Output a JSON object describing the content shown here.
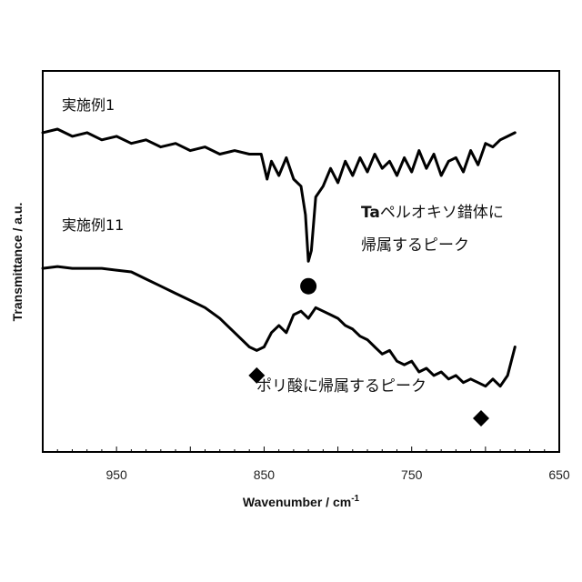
{
  "chart_data": {
    "type": "line",
    "xlabel": "Wavenumber / cm",
    "xlabel_sup": "-1",
    "ylabel": "Transmittance / a.u.",
    "xlim": [
      1000,
      650
    ],
    "x_reversed": true,
    "xticks": [
      950,
      850,
      750,
      650
    ],
    "y_scale": "arbitrary offset",
    "series": [
      {
        "name": "実施例1",
        "x": [
          1000,
          990,
          980,
          970,
          960,
          950,
          940,
          930,
          920,
          910,
          900,
          890,
          880,
          870,
          860,
          852,
          848,
          845,
          840,
          835,
          830,
          825,
          822,
          820,
          818,
          815,
          810,
          805,
          800,
          795,
          790,
          785,
          780,
          775,
          770,
          765,
          760,
          755,
          750,
          745,
          740,
          735,
          730,
          725,
          720,
          715,
          710,
          705,
          700,
          695,
          690,
          685,
          680
        ],
        "y": [
          0.98,
          0.99,
          0.97,
          0.98,
          0.96,
          0.97,
          0.95,
          0.96,
          0.94,
          0.95,
          0.93,
          0.94,
          0.92,
          0.93,
          0.92,
          0.92,
          0.85,
          0.9,
          0.86,
          0.91,
          0.85,
          0.83,
          0.75,
          0.62,
          0.65,
          0.8,
          0.83,
          0.88,
          0.84,
          0.9,
          0.86,
          0.91,
          0.87,
          0.92,
          0.88,
          0.9,
          0.86,
          0.91,
          0.87,
          0.93,
          0.88,
          0.92,
          0.86,
          0.9,
          0.91,
          0.87,
          0.93,
          0.89,
          0.95,
          0.94,
          0.96,
          0.97,
          0.98
        ]
      },
      {
        "name": "実施例11",
        "x": [
          1000,
          990,
          980,
          970,
          960,
          950,
          940,
          930,
          920,
          910,
          900,
          890,
          880,
          870,
          860,
          855,
          850,
          845,
          840,
          835,
          830,
          825,
          820,
          815,
          810,
          805,
          800,
          795,
          790,
          785,
          780,
          775,
          770,
          765,
          760,
          755,
          750,
          745,
          740,
          735,
          730,
          725,
          720,
          715,
          710,
          705,
          700,
          695,
          690,
          685,
          680
        ],
        "y": [
          0.6,
          0.605,
          0.6,
          0.6,
          0.6,
          0.595,
          0.59,
          0.57,
          0.55,
          0.53,
          0.51,
          0.49,
          0.46,
          0.42,
          0.38,
          0.37,
          0.38,
          0.42,
          0.44,
          0.42,
          0.47,
          0.48,
          0.46,
          0.49,
          0.48,
          0.47,
          0.46,
          0.44,
          0.43,
          0.41,
          0.4,
          0.38,
          0.36,
          0.37,
          0.34,
          0.33,
          0.34,
          0.31,
          0.32,
          0.3,
          0.31,
          0.29,
          0.3,
          0.28,
          0.29,
          0.28,
          0.27,
          0.29,
          0.27,
          0.3,
          0.38
        ]
      }
    ],
    "markers": [
      {
        "shape": "circle",
        "x": 820,
        "y": 0.55,
        "label_ref": "ta"
      },
      {
        "shape": "diamond",
        "x": 855,
        "y": 0.3,
        "label_ref": "poly"
      },
      {
        "shape": "diamond",
        "x": 703,
        "y": 0.18,
        "label_ref": "poly"
      }
    ],
    "annotations": {
      "ta_prefix": "Ta",
      "ta_line1_rest": "ペルオキソ錯体に",
      "ta_line2": "帰属するピーク",
      "poly": "ポリ酸に帰属するピーク"
    },
    "grid": false,
    "legend": "none"
  }
}
